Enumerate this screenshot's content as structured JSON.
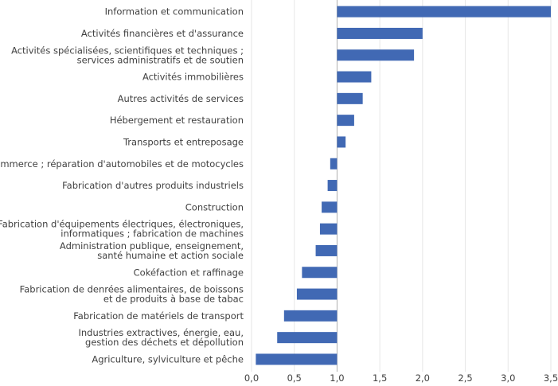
{
  "chart_data": {
    "type": "bar",
    "orientation": "horizontal",
    "bar_color": "#4169b4",
    "reference_value": 1.0,
    "categories": [
      [
        "Information et communication"
      ],
      [
        "Activités financières et d'assurance"
      ],
      [
        "Activités spécialisées, scientifiques et techniques ;",
        "services administratifs et de soutien"
      ],
      [
        "Activités immobilières"
      ],
      [
        "Autres activités de services"
      ],
      [
        "Hébergement et restauration"
      ],
      [
        "Transports et entreposage"
      ],
      [
        "Commerce ; réparation d'automobiles et de motocycles"
      ],
      [
        "Fabrication d'autres produits industriels"
      ],
      [
        "Construction"
      ],
      [
        "Fabrication d'équipements électriques, électroniques,",
        "informatiques ; fabrication de machines"
      ],
      [
        "Administration publique, enseignement,",
        "santé humaine et action sociale"
      ],
      [
        "Cokéfaction et raffinage"
      ],
      [
        "Fabrication de denrées alimentaires, de boissons",
        " et  de produits à base de tabac"
      ],
      [
        "Fabrication de matériels de transport"
      ],
      [
        "Industries extractives, énergie, eau,",
        "gestion des déchets et dépollution"
      ],
      [
        "Agriculture, sylviculture et pêche"
      ]
    ],
    "values": [
      3.5,
      2.0,
      1.9,
      1.4,
      1.3,
      1.2,
      1.1,
      0.92,
      0.89,
      0.82,
      0.8,
      0.75,
      0.59,
      0.53,
      0.38,
      0.3,
      0.05
    ],
    "xlim": [
      0.0,
      3.5
    ],
    "xticks": [
      0.0,
      0.5,
      1.0,
      1.5,
      2.0,
      2.5,
      3.0,
      3.5
    ],
    "xtick_labels": [
      "0,0",
      "0,5",
      "1,0",
      "1,5",
      "2,0",
      "2,5",
      "3,0",
      "3,5"
    ],
    "grid": "vertical",
    "title": "",
    "xlabel": "",
    "ylabel": ""
  }
}
